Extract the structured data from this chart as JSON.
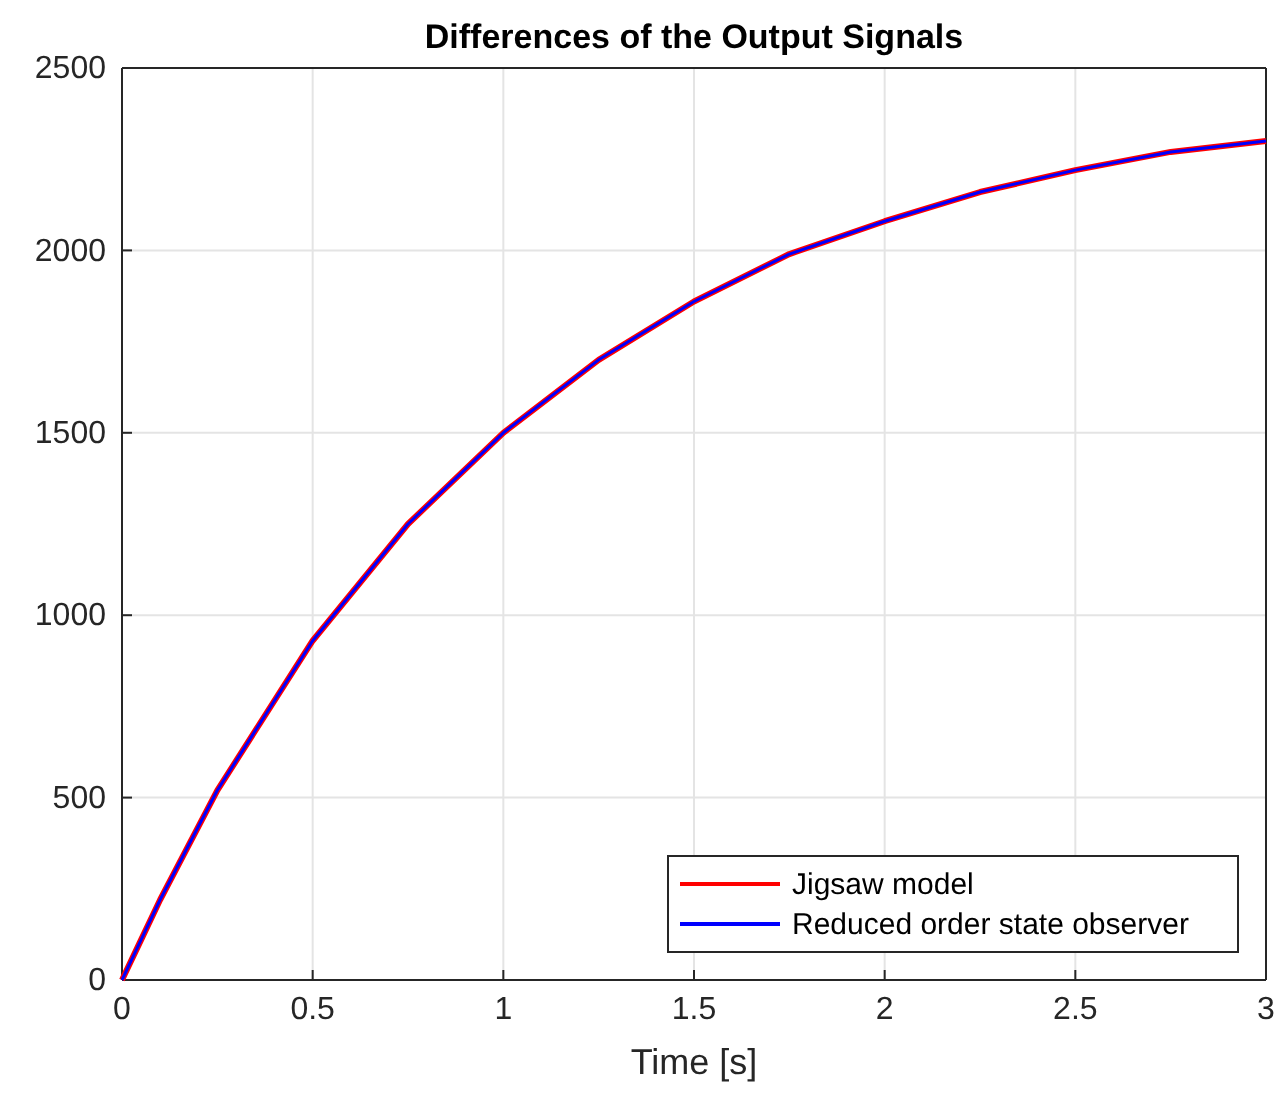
{
  "chart_data": {
    "type": "line",
    "title": "Differences of the Output Signals",
    "xlabel": "Time [s]",
    "x": [
      0,
      0.05,
      0.1,
      0.25,
      0.5,
      0.75,
      1,
      1.25,
      1.5,
      1.75,
      2,
      2.25,
      2.5,
      2.75,
      3
    ],
    "series": [
      {
        "name": "Jigsaw model",
        "color": "#ff0000",
        "values": [
          0,
          110,
          220,
          520,
          930,
          1250,
          1500,
          1700,
          1860,
          1990,
          2080,
          2160,
          2220,
          2270,
          2300
        ]
      },
      {
        "name": "Reduced order state observer",
        "color": "#0000ff",
        "values": [
          0,
          110,
          220,
          520,
          930,
          1250,
          1500,
          1700,
          1860,
          1990,
          2080,
          2160,
          2220,
          2270,
          2300
        ]
      }
    ],
    "xlim": [
      0,
      3
    ],
    "xticks": [
      0,
      0.5,
      1,
      1.5,
      2,
      2.5,
      3
    ],
    "ylim": [
      0,
      2500
    ],
    "yticks": [
      0,
      500,
      1000,
      1500,
      2000,
      2500
    ],
    "grid": true,
    "legend": "bottom right",
    "line_style": "solid",
    "marker": "none"
  }
}
